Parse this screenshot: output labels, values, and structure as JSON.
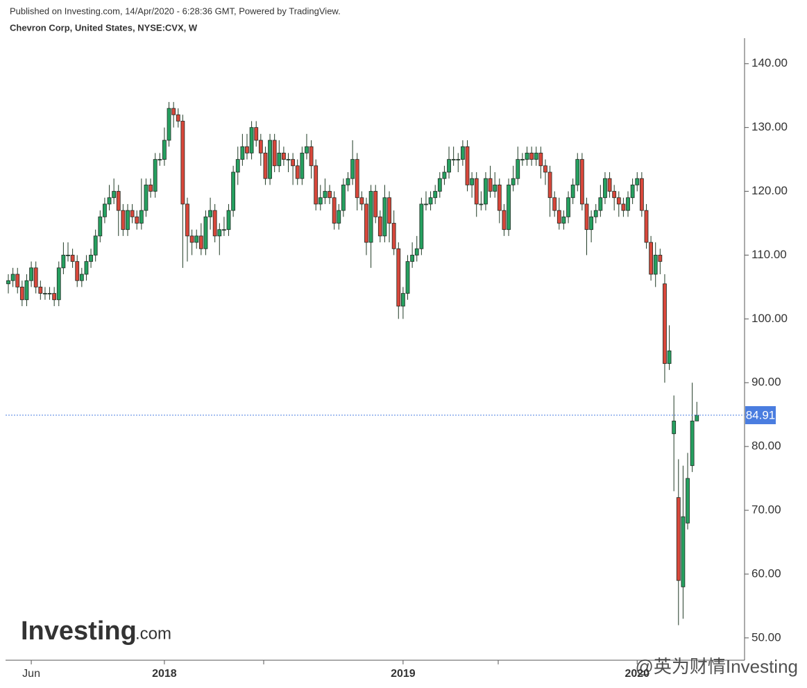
{
  "chart_data": {
    "type": "candlestick",
    "header": "Published on Investing.com, 14/Apr/2020 - 6:28:36 GMT, Powered by TradingView.",
    "title": "Chevron Corp, United States, NYSE:CVX, W",
    "logo": [
      "Investing",
      ".com"
    ],
    "watermark": "@英为财情Investing",
    "up_color": "#26a060",
    "down_color": "#d8473b",
    "last_color": "#4a7de0",
    "grid": false,
    "ylim": [
      46.5,
      144
    ],
    "yticks": [
      {
        "value": 50,
        "label": "50.00"
      },
      {
        "value": 60,
        "label": "60.00"
      },
      {
        "value": 70,
        "label": "70.00"
      },
      {
        "value": 80,
        "label": "80.00"
      },
      {
        "value": 90,
        "label": "90.00"
      },
      {
        "value": 100,
        "label": "100.00"
      },
      {
        "value": 110,
        "label": "110.00"
      },
      {
        "value": 120,
        "label": "120.00"
      },
      {
        "value": 130,
        "label": "130.00"
      },
      {
        "value": 140,
        "label": "140.00"
      }
    ],
    "categories": [
      null,
      null,
      null,
      null,
      null,
      "Jun",
      null,
      null,
      null,
      null,
      null,
      null,
      null,
      null,
      null,
      null,
      null,
      null,
      null,
      null,
      null,
      null,
      null,
      null,
      null,
      null,
      null,
      null,
      null,
      null,
      null,
      null,
      null,
      null,
      "2018",
      null,
      null,
      null,
      null,
      null,
      null,
      null,
      null,
      null,
      null,
      null,
      null,
      null,
      null,
      null,
      null,
      null,
      null,
      null,
      null,
      null,
      null,
      null,
      null,
      null,
      null,
      null,
      null,
      null,
      null,
      null,
      null,
      null,
      null,
      null,
      null,
      null,
      null,
      null,
      null,
      null,
      null,
      null,
      null,
      null,
      null,
      null,
      null,
      null,
      null,
      null,
      "2019",
      null,
      null,
      null,
      null,
      null,
      null,
      null,
      null,
      null,
      null,
      null,
      null,
      null,
      null,
      null,
      null,
      null,
      null,
      null,
      null,
      null,
      null,
      null,
      null,
      null,
      null,
      null,
      null,
      null,
      null,
      null,
      null,
      null,
      null,
      null,
      null,
      null,
      null,
      null,
      null,
      null,
      null,
      null,
      null,
      null,
      null,
      null,
      null,
      null,
      null,
      "2020",
      null,
      null,
      null,
      null,
      null,
      null,
      null,
      null,
      null,
      null,
      null,
      null,
      null
    ],
    "open": [
      105.5,
      106,
      107,
      105,
      103,
      106,
      108,
      105,
      104,
      104,
      104,
      103,
      108,
      110,
      110,
      109,
      106,
      107,
      109,
      110,
      113,
      116,
      118,
      119,
      120,
      117,
      114,
      117,
      116,
      115,
      117,
      121,
      120,
      125,
      125,
      128,
      133,
      132,
      131,
      118,
      113,
      112,
      113,
      111,
      116,
      117,
      113,
      114,
      114,
      117,
      123,
      125,
      127,
      126,
      130,
      128,
      126,
      122,
      128,
      124,
      126,
      125,
      125,
      124,
      122,
      126,
      127,
      124,
      118,
      119,
      120,
      119,
      115,
      117,
      121,
      122,
      125,
      119,
      118,
      112,
      120,
      116,
      113,
      119,
      115,
      111,
      102,
      104,
      109,
      110,
      111,
      118,
      118,
      119,
      120,
      122,
      123,
      125,
      125,
      125,
      127,
      121,
      122,
      118,
      118,
      122,
      120,
      121,
      117,
      114,
      121,
      122,
      125,
      125,
      126,
      125,
      126,
      124,
      123,
      119,
      117,
      115,
      116,
      119,
      121,
      125,
      118,
      114,
      116,
      117,
      119,
      122,
      120,
      119,
      118,
      117,
      119,
      121,
      122,
      117,
      112,
      107,
      110,
      105.5,
      93,
      82,
      72,
      58,
      68,
      77,
      84
    ],
    "high": [
      107,
      108,
      108,
      106,
      107,
      109,
      109,
      106,
      105,
      105,
      105,
      109,
      112,
      112,
      111,
      110,
      108,
      110,
      111,
      114,
      117,
      119,
      121,
      122,
      121,
      118,
      118,
      118,
      117,
      122,
      122,
      122,
      126,
      126,
      130,
      134,
      134,
      133,
      132,
      119,
      114,
      114,
      115,
      117,
      119,
      118,
      115,
      116,
      118,
      124,
      127,
      129,
      129,
      131,
      131,
      129,
      127,
      129,
      129,
      128,
      127,
      126,
      126,
      125,
      127,
      129,
      128,
      125,
      121,
      122,
      121,
      120,
      118,
      122,
      123,
      128,
      126,
      120,
      119,
      121,
      121,
      117,
      121,
      120,
      117,
      112,
      105,
      110,
      112,
      113,
      119,
      120,
      120,
      121,
      123,
      124,
      127,
      127,
      126,
      128,
      128,
      123,
      123,
      120,
      123,
      124,
      123,
      122,
      118,
      122,
      124,
      127,
      126,
      127,
      127,
      127,
      127,
      125,
      124,
      120,
      119,
      117,
      120,
      122,
      126,
      126,
      119,
      117,
      118,
      121,
      123,
      123,
      121,
      120,
      119,
      120,
      122,
      123,
      123,
      118,
      113,
      112,
      111,
      107,
      99,
      88,
      78,
      77,
      79,
      90,
      87
    ],
    "low": [
      104,
      105,
      104,
      102,
      102,
      105,
      104,
      103,
      103,
      103,
      102,
      102,
      107,
      109,
      108,
      105,
      105,
      106,
      108,
      109,
      112,
      115,
      117,
      118,
      113,
      113,
      113,
      115,
      114,
      114,
      116,
      119,
      119,
      124,
      124,
      127,
      130,
      130,
      108,
      109,
      110,
      111,
      110,
      110,
      114,
      112,
      110,
      113,
      113,
      116,
      121,
      124,
      125,
      125,
      127,
      124,
      121,
      121,
      123,
      123,
      124,
      123,
      121,
      121,
      121,
      125,
      122,
      117,
      117,
      118,
      118,
      114,
      114,
      116,
      120,
      121,
      117,
      117,
      110,
      108,
      115,
      112,
      112,
      112,
      110,
      100,
      100,
      103,
      108,
      109,
      110,
      117,
      117,
      118,
      119,
      121,
      122,
      124,
      123,
      124,
      120,
      119,
      116,
      117,
      117,
      119,
      119,
      115,
      113,
      113,
      120,
      121,
      124,
      124,
      124,
      124,
      122,
      121,
      116,
      116,
      114,
      114,
      115,
      118,
      120,
      117,
      110,
      112,
      115,
      116,
      118,
      119,
      117,
      116,
      116,
      116,
      118,
      120,
      116,
      111,
      106,
      105,
      107,
      90,
      92,
      73,
      52,
      53,
      67,
      76,
      84
    ],
    "close": [
      106,
      107,
      105,
      103,
      106,
      108,
      105,
      104,
      104,
      104,
      103,
      108,
      110,
      110,
      109,
      106,
      107,
      109,
      110,
      113,
      116,
      118,
      119,
      120,
      117,
      114,
      117,
      116,
      115,
      117,
      121,
      120,
      125,
      125,
      128,
      133,
      132,
      131,
      118,
      113,
      112,
      113,
      111,
      116,
      117,
      113,
      114,
      114,
      117,
      123,
      125,
      127,
      126,
      130,
      128,
      126,
      122,
      128,
      124,
      126,
      125,
      125,
      124,
      122,
      126,
      127,
      124,
      118,
      119,
      120,
      119,
      115,
      117,
      121,
      122,
      125,
      119,
      118,
      112,
      120,
      116,
      113,
      119,
      115,
      111,
      102,
      104,
      109,
      110,
      111,
      118,
      118,
      119,
      120,
      122,
      123,
      125,
      125,
      125,
      127,
      121,
      122,
      118,
      118,
      122,
      120,
      121,
      117,
      114,
      121,
      122,
      125,
      125,
      126,
      125,
      126,
      124,
      123,
      119,
      117,
      115,
      116,
      119,
      121,
      125,
      118,
      114,
      116,
      117,
      119,
      122,
      120,
      119,
      118,
      117,
      119,
      121,
      122,
      117,
      112,
      107,
      110,
      109,
      93,
      95,
      84,
      59,
      69,
      75,
      84,
      84.91
    ]
  }
}
